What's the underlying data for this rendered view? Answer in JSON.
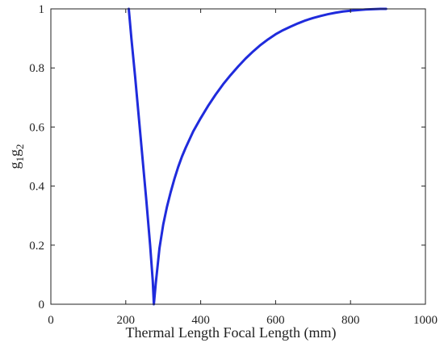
{
  "chart_data": {
    "type": "line",
    "title": "",
    "xlabel": "Thermal Length Focal Length (mm)",
    "ylabel": {
      "base1": "g",
      "sub1": "1",
      "base2": "g",
      "sub2": "2"
    },
    "xlim": [
      0,
      1000
    ],
    "ylim": [
      0,
      1
    ],
    "xticks": [
      0,
      200,
      400,
      600,
      800,
      1000
    ],
    "yticks": [
      0,
      0.2,
      0.4,
      0.6,
      0.8,
      1
    ],
    "xtick_labels": [
      "0",
      "200",
      "400",
      "600",
      "800",
      "1000"
    ],
    "ytick_labels": [
      "0",
      "0.2",
      "0.4",
      "0.6",
      "0.8",
      "1"
    ],
    "grid": false,
    "series": [
      {
        "color": "#1f2bdc",
        "x": [
          208,
          215,
          225,
          235,
          245,
          255,
          265,
          272,
          275,
          280,
          290,
          300,
          310,
          320,
          330,
          340,
          350,
          360,
          380,
          400,
          420,
          440,
          460,
          480,
          500,
          520,
          540,
          560,
          580,
          600,
          620,
          640,
          660,
          680,
          700,
          720,
          740,
          760,
          780,
          800,
          820,
          840,
          860,
          880,
          895
        ],
        "y": [
          1.0,
          0.9,
          0.77,
          0.63,
          0.49,
          0.35,
          0.2,
          0.08,
          0.0,
          0.07,
          0.19,
          0.27,
          0.33,
          0.38,
          0.425,
          0.465,
          0.5,
          0.53,
          0.585,
          0.63,
          0.672,
          0.71,
          0.745,
          0.776,
          0.805,
          0.832,
          0.856,
          0.878,
          0.897,
          0.914,
          0.928,
          0.94,
          0.951,
          0.961,
          0.969,
          0.976,
          0.982,
          0.987,
          0.991,
          0.994,
          0.996,
          0.998,
          0.999,
          1.0,
          1.0
        ]
      }
    ]
  }
}
